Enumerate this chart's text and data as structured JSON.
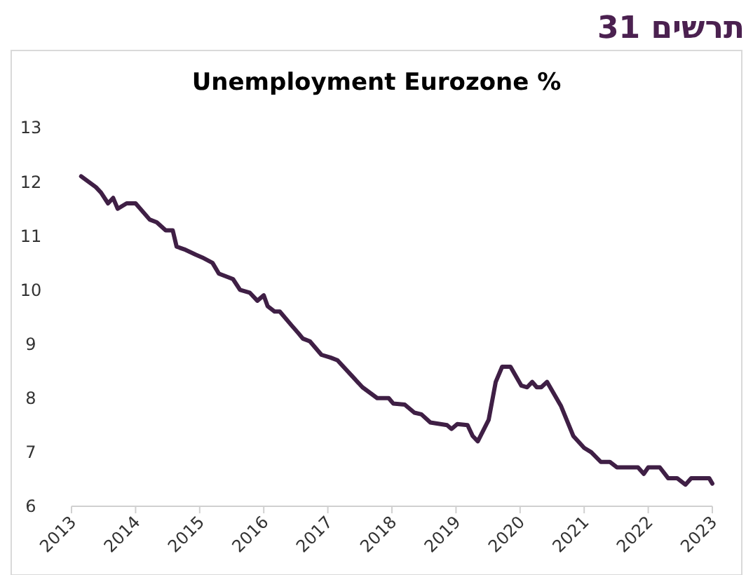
{
  "chart_data": {
    "type": "line",
    "title": "תרשים 31",
    "subtitle": "Unemployment Eurozone %",
    "xlim": [
      2013,
      2023
    ],
    "xticks": [
      2013,
      2014,
      2015,
      2016,
      2017,
      2018,
      2019,
      2020,
      2021,
      2022,
      2023
    ],
    "ylim": [
      6,
      13
    ],
    "yticks": [
      6,
      7,
      8,
      9,
      10,
      11,
      12,
      13
    ],
    "grid": false,
    "marker": "none",
    "line_style": "solid",
    "series": [
      {
        "color": "#3f1f45",
        "x": [
          2013.15,
          2013.38,
          2013.46,
          2013.57,
          2013.65,
          2013.72,
          2013.86,
          2014.0,
          2014.22,
          2014.33,
          2014.47,
          2014.58,
          2014.64,
          2014.76,
          2014.94,
          2015.04,
          2015.2,
          2015.3,
          2015.52,
          2015.63,
          2015.78,
          2015.9,
          2016.0,
          2016.06,
          2016.17,
          2016.25,
          2016.43,
          2016.54,
          2016.61,
          2016.72,
          2016.9,
          2017.04,
          2017.15,
          2017.54,
          2017.77,
          2017.95,
          2018.02,
          2018.2,
          2018.35,
          2018.46,
          2018.6,
          2018.86,
          2018.93,
          2019.02,
          2019.18,
          2019.26,
          2019.34,
          2019.51,
          2019.62,
          2019.72,
          2019.85,
          2020.02,
          2020.11,
          2020.19,
          2020.26,
          2020.33,
          2020.42,
          2020.64,
          2020.83,
          2021.0,
          2021.11,
          2021.26,
          2021.4,
          2021.51,
          2021.84,
          2021.93,
          2022.0,
          2022.18,
          2022.31,
          2022.45,
          2022.58,
          2022.67,
          2022.95,
          2023.0
        ],
        "values": [
          12.1,
          11.9,
          11.8,
          11.6,
          11.7,
          11.5,
          11.6,
          11.6,
          11.3,
          11.25,
          11.1,
          11.1,
          10.8,
          10.75,
          10.65,
          10.6,
          10.5,
          10.3,
          10.2,
          10.0,
          9.95,
          9.8,
          9.9,
          9.7,
          9.6,
          9.6,
          9.35,
          9.2,
          9.1,
          9.05,
          8.8,
          8.75,
          8.7,
          8.2,
          8.0,
          8.0,
          7.9,
          7.88,
          7.73,
          7.7,
          7.55,
          7.5,
          7.43,
          7.52,
          7.5,
          7.3,
          7.2,
          7.6,
          8.3,
          8.58,
          8.58,
          8.23,
          8.2,
          8.3,
          8.2,
          8.2,
          8.3,
          7.85,
          7.3,
          7.08,
          7.0,
          6.82,
          6.82,
          6.72,
          6.72,
          6.6,
          6.72,
          6.72,
          6.52,
          6.52,
          6.4,
          6.52,
          6.52,
          6.42
        ]
      }
    ]
  }
}
